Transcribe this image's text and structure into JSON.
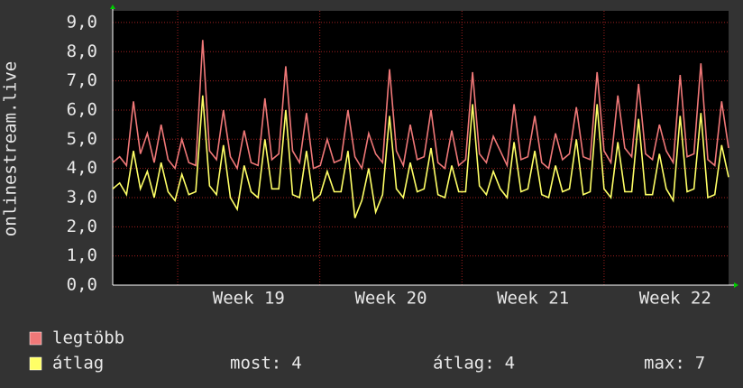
{
  "chart_data": {
    "type": "line",
    "y_axis_label": "onlinestream.live",
    "xlim": [
      18.543,
      22.876
    ],
    "xticks": [
      {
        "value": 19,
        "label": "Week 19"
      },
      {
        "value": 20,
        "label": "Week 20"
      },
      {
        "value": 21,
        "label": "Week 21"
      },
      {
        "value": 22,
        "label": "Week 22"
      }
    ],
    "ylim": [
      0,
      9.4
    ],
    "yticks": [
      {
        "value": 0,
        "label": "0,0"
      },
      {
        "value": 1,
        "label": "1,0"
      },
      {
        "value": 2,
        "label": "2,0"
      },
      {
        "value": 3,
        "label": "3,0"
      },
      {
        "value": 4,
        "label": "4,0"
      },
      {
        "value": 5,
        "label": "5,0"
      },
      {
        "value": 6,
        "label": "6,0"
      },
      {
        "value": 7,
        "label": "7,0"
      },
      {
        "value": 8,
        "label": "8,0"
      },
      {
        "value": 9,
        "label": "9,0"
      }
    ],
    "grid": true,
    "series": [
      {
        "name": "legtöbb",
        "color": "#f07878",
        "values": [
          4.2,
          4.4,
          4.1,
          6.3,
          4.5,
          5.2,
          4.2,
          5.5,
          4.3,
          4.0,
          5.0,
          4.2,
          4.1,
          8.4,
          4.6,
          4.3,
          6.0,
          4.4,
          4.0,
          5.3,
          4.2,
          4.1,
          6.4,
          4.3,
          4.5,
          7.5,
          4.6,
          4.2,
          5.9,
          4.0,
          4.1,
          5.0,
          4.2,
          4.3,
          6.0,
          4.4,
          4.0,
          5.2,
          4.5,
          4.2,
          7.4,
          4.6,
          4.1,
          5.5,
          4.3,
          4.4,
          6.0,
          4.2,
          4.0,
          5.3,
          4.1,
          4.3,
          7.3,
          4.5,
          4.2,
          5.1,
          4.6,
          4.1,
          6.2,
          4.3,
          4.4,
          5.8,
          4.2,
          4.0,
          5.2,
          4.3,
          4.5,
          6.1,
          4.4,
          4.3,
          7.3,
          4.6,
          4.2,
          6.5,
          4.7,
          4.4,
          6.9,
          4.5,
          4.3,
          5.5,
          4.6,
          4.2,
          7.2,
          4.4,
          4.5,
          7.6,
          4.3,
          4.1,
          6.3,
          4.7
        ]
      },
      {
        "name": "átlag",
        "color": "#ffff66",
        "values": [
          3.3,
          3.5,
          3.1,
          4.6,
          3.3,
          3.9,
          3.0,
          4.2,
          3.2,
          2.9,
          3.8,
          3.1,
          3.2,
          6.5,
          3.4,
          3.1,
          4.8,
          3.0,
          2.6,
          4.1,
          3.2,
          3.0,
          5.0,
          3.3,
          3.3,
          6.0,
          3.1,
          3.0,
          4.6,
          2.9,
          3.1,
          3.9,
          3.2,
          3.2,
          4.6,
          2.3,
          2.9,
          4.0,
          2.5,
          3.1,
          5.8,
          3.3,
          3.0,
          4.2,
          3.2,
          3.3,
          4.7,
          3.1,
          3.0,
          4.1,
          3.2,
          3.2,
          6.2,
          3.4,
          3.1,
          3.9,
          3.3,
          3.0,
          4.9,
          3.2,
          3.3,
          4.6,
          3.1,
          3.0,
          4.1,
          3.2,
          3.3,
          5.0,
          3.1,
          3.2,
          6.2,
          3.3,
          3.0,
          4.9,
          3.2,
          3.2,
          5.7,
          3.1,
          3.1,
          4.5,
          3.3,
          2.9,
          5.8,
          3.2,
          3.3,
          5.9,
          3.0,
          3.1,
          4.8,
          3.7
        ]
      }
    ],
    "summary": [
      {
        "label": "most:",
        "value": 4
      },
      {
        "label": "átlag:",
        "value": 4
      },
      {
        "label": "max:",
        "value": 7
      }
    ]
  }
}
